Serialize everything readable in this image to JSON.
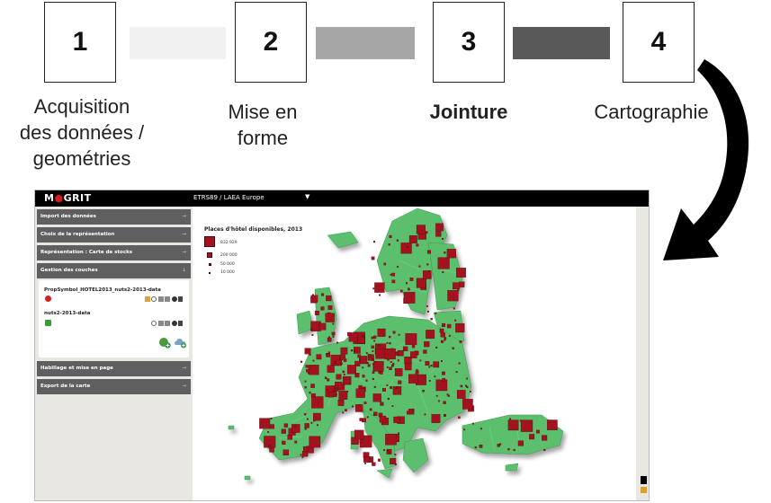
{
  "steps": [
    {
      "number": "1",
      "label_lines": [
        "Acquisition",
        "des données /",
        "geométries"
      ],
      "bold": false
    },
    {
      "number": "2",
      "label_lines": [
        "Mise en",
        "forme"
      ],
      "bold": false
    },
    {
      "number": "3",
      "label_lines": [
        "Jointure"
      ],
      "bold": true
    },
    {
      "number": "4",
      "label_lines": [
        "Cartographie"
      ],
      "bold": false
    }
  ],
  "connector_colors": [
    "#f1f1f1",
    "#a6a6a6",
    "#595959"
  ],
  "app": {
    "logo": "MGRIT",
    "logo_dot_color": "#d91a1a",
    "projection": "ETRS89 / LAEA Europe",
    "panels": {
      "import": "Import des données",
      "representation": "Choix de la représentation",
      "stock_map": "Représentation : Carte de stocks",
      "layers": "Gestion des couches",
      "layout": "Habillage et mise en page",
      "export": "Export de la carte"
    },
    "layers": [
      {
        "name": "PropSymbol_HOTEL2013_nuts2-2013-data",
        "swatch_color": "#d41f1f"
      },
      {
        "name": "nuts2-2013-data",
        "swatch_color": "#3a9a3a"
      }
    ],
    "map": {
      "legend_title": "Places d'hôtel disponibles, 2013",
      "legend_items": [
        {
          "label": "832 929",
          "value": 832929
        },
        {
          "label": "200 000",
          "value": 200000
        },
        {
          "label": "50 000",
          "value": 50000
        },
        {
          "label": "10 000",
          "value": 10000
        }
      ],
      "land_color": "#5bbf6e",
      "symbol_color": "#a3131f"
    }
  }
}
